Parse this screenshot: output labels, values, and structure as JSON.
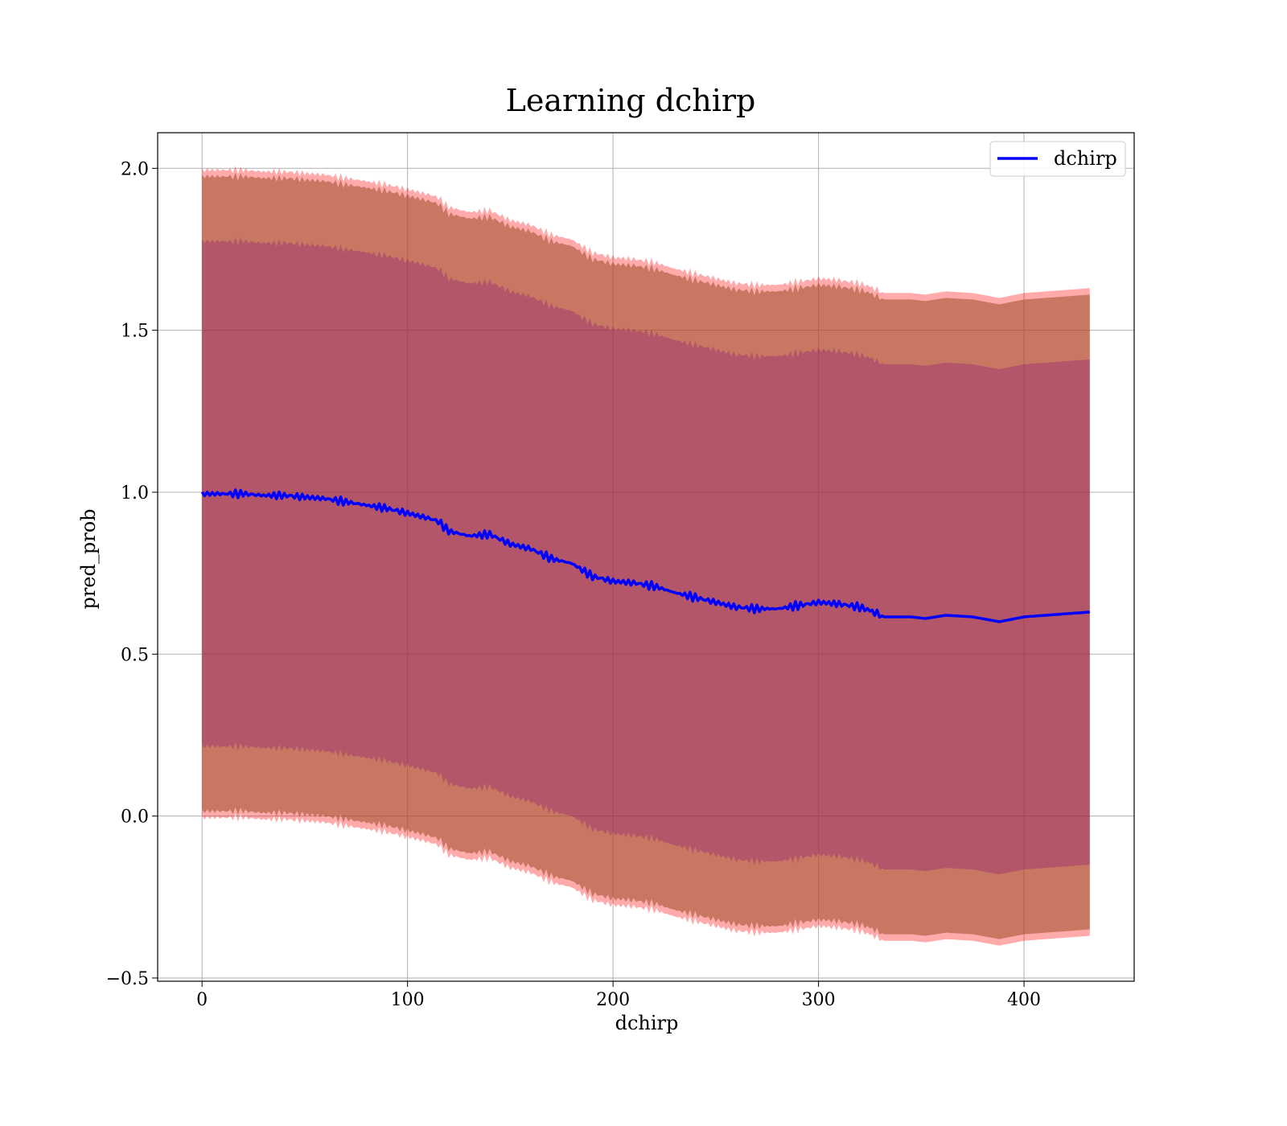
{
  "chart_data": {
    "type": "line",
    "title": "Learning dchirp",
    "xlabel": "dchirp",
    "ylabel": "pred_prob",
    "xlim": [
      -21.6,
      453.6
    ],
    "ylim": [
      -0.51,
      2.11
    ],
    "xticks": [
      0,
      100,
      200,
      300,
      400
    ],
    "xtick_labels": [
      "0",
      "100",
      "200",
      "300",
      "400"
    ],
    "yticks": [
      -0.5,
      0.0,
      0.5,
      1.0,
      1.5,
      2.0
    ],
    "ytick_labels": [
      "−0.5",
      "0.0",
      "0.5",
      "1.0",
      "1.5",
      "2.0"
    ],
    "grid": true,
    "legend": {
      "position": "top-right",
      "entries": [
        "dchirp"
      ]
    },
    "colors": {
      "mean_line": "#0000ff",
      "band_outer": "#ff0000",
      "band_middle": "#a0522d",
      "band_inner": "#800080",
      "grid": "#b0b0b0"
    },
    "series": [
      {
        "name": "dchirp",
        "x": [
          0,
          10,
          20,
          30,
          40,
          50,
          60,
          70,
          80,
          90,
          100,
          110,
          115,
          120,
          130,
          140,
          150,
          160,
          170,
          180,
          190,
          200,
          210,
          220,
          230,
          240,
          250,
          260,
          270,
          280,
          290,
          300,
          310,
          320,
          325,
          332,
          345,
          352,
          362,
          375,
          388,
          400,
          432
        ],
        "y": [
          0.995,
          0.995,
          0.995,
          0.99,
          0.99,
          0.985,
          0.98,
          0.97,
          0.96,
          0.95,
          0.935,
          0.92,
          0.91,
          0.88,
          0.865,
          0.87,
          0.84,
          0.825,
          0.795,
          0.78,
          0.74,
          0.725,
          0.72,
          0.71,
          0.69,
          0.675,
          0.66,
          0.645,
          0.64,
          0.64,
          0.65,
          0.66,
          0.655,
          0.645,
          0.635,
          0.615,
          0.615,
          0.61,
          0.62,
          0.615,
          0.6,
          0.615,
          0.63
        ]
      }
    ],
    "bands": [
      {
        "level": "outer",
        "lower_offset": 1.0,
        "upper_offset": 1.0,
        "edge_width": 0.02
      },
      {
        "level": "middle",
        "lower_offset": 0.98,
        "upper_offset": 0.98
      },
      {
        "level": "inner",
        "lower_offset": 0.78,
        "upper_offset": 0.78
      }
    ]
  }
}
